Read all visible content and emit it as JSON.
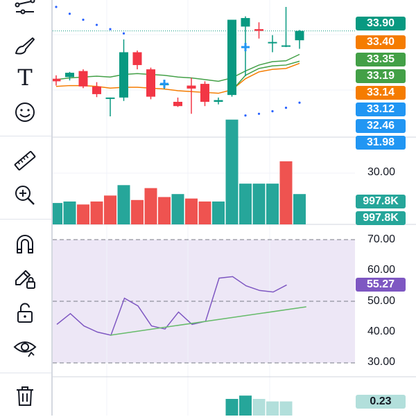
{
  "toolbar": {
    "tools": [
      {
        "name": "trend-line-tool",
        "icon": "trend-line-icon"
      },
      {
        "name": "brush-tool",
        "icon": "brush-icon"
      },
      {
        "name": "text-tool",
        "icon": "text-icon"
      },
      {
        "name": "emoji-tool",
        "icon": "emoji-icon"
      },
      {
        "name": "ruler-tool",
        "icon": "ruler-icon"
      },
      {
        "name": "zoom-in-tool",
        "icon": "zoom-in-icon"
      },
      {
        "name": "magnet-tool",
        "icon": "magnet-icon"
      },
      {
        "name": "lock-drawing-tool",
        "icon": "pencil-lock-icon"
      },
      {
        "name": "unlock-tool",
        "icon": "unlock-icon"
      },
      {
        "name": "visibility-tool",
        "icon": "eye-icon"
      },
      {
        "name": "delete-tool",
        "icon": "trash-icon"
      }
    ],
    "text_tool_glyph": "T"
  },
  "price_badges": [
    {
      "label": "33.90",
      "color": "#089981"
    },
    {
      "label": "33.40",
      "color": "#f57c00"
    },
    {
      "label": "33.35",
      "color": "#43a047"
    },
    {
      "label": "33.19",
      "color": "#43a047"
    },
    {
      "label": "33.14",
      "color": "#f57c00"
    },
    {
      "label": "33.12",
      "color": "#2196f3"
    },
    {
      "label": "32.46",
      "color": "#2196f3"
    },
    {
      "label": "31.98",
      "color": "#2196f3"
    }
  ],
  "volume_pane": {
    "axis_label": "30.00",
    "badges": [
      "997.8K",
      "997.8K"
    ]
  },
  "rsi_pane": {
    "axis_labels": [
      "70.00",
      "60.00",
      "50.00",
      "40.00",
      "30.00"
    ],
    "value_badge": "55.27",
    "value_color": "#7e57c2",
    "band_color": "#ede7f6"
  },
  "macd_pane": {
    "value_badge": "0.23",
    "badge_color": "#b2dfdb"
  },
  "colors": {
    "up": "#089981",
    "down": "#f23645",
    "vol_up": "#26a69a",
    "vol_down": "#ef5350",
    "psar": "#2962ff",
    "ma_green": "#43a047",
    "ma_orange": "#f57c00",
    "rsi_line": "#7e57c2",
    "trend_line": "#66bb6a"
  },
  "chart_data": [
    {
      "type": "candlestick",
      "candles": [
        {
          "o": 32.78,
          "h": 32.86,
          "l": 32.62,
          "c": 32.72
        },
        {
          "o": 32.82,
          "h": 32.94,
          "l": 32.74,
          "c": 32.92
        },
        {
          "o": 32.96,
          "h": 33.0,
          "l": 32.56,
          "c": 32.6
        },
        {
          "o": 32.6,
          "h": 32.7,
          "l": 32.35,
          "c": 32.42
        },
        {
          "o": 32.34,
          "h": 32.34,
          "l": 31.9,
          "c": 32.34
        },
        {
          "o": 32.34,
          "h": 33.7,
          "l": 32.26,
          "c": 33.4
        },
        {
          "o": 33.4,
          "h": 33.44,
          "l": 33.0,
          "c": 33.1
        },
        {
          "o": 33.0,
          "h": 33.04,
          "l": 32.3,
          "c": 32.36
        },
        {
          "o": 32.64,
          "h": 32.74,
          "l": 32.54,
          "c": 32.66
        },
        {
          "o": 32.24,
          "h": 32.34,
          "l": 32.12,
          "c": 32.14
        },
        {
          "o": 32.62,
          "h": 32.8,
          "l": 31.96,
          "c": 32.55
        },
        {
          "o": 32.66,
          "h": 32.72,
          "l": 32.14,
          "c": 32.24
        },
        {
          "o": 32.24,
          "h": 32.34,
          "l": 32.18,
          "c": 32.28
        },
        {
          "o": 32.4,
          "h": 34.16,
          "l": 32.36,
          "c": 34.16
        },
        {
          "o": 34.0,
          "h": 34.24,
          "l": 32.84,
          "c": 34.2
        },
        {
          "o": 33.94,
          "h": 34.1,
          "l": 33.72,
          "c": 33.9
        },
        {
          "o": 33.64,
          "h": 33.8,
          "l": 33.4,
          "c": 33.64
        },
        {
          "o": 33.56,
          "h": 34.46,
          "l": 33.52,
          "c": 33.56
        },
        {
          "o": 33.68,
          "h": 33.92,
          "l": 33.48,
          "c": 33.9
        }
      ],
      "psar": [
        34.46,
        34.3,
        34.16,
        34.04,
        33.94,
        33.84,
        null,
        null,
        null,
        null,
        null,
        null,
        null,
        null,
        31.92,
        31.96,
        32.02,
        32.1,
        32.22
      ],
      "ma_green": [
        32.76,
        32.8,
        32.82,
        32.84,
        32.82,
        32.88,
        32.9,
        32.88,
        32.86,
        32.82,
        32.8,
        32.76,
        32.72,
        32.8,
        32.96,
        33.1,
        33.18,
        33.2,
        33.35
      ],
      "ma_orange": [
        32.6,
        32.62,
        32.62,
        32.6,
        32.56,
        32.58,
        32.58,
        32.56,
        32.54,
        32.5,
        32.48,
        32.46,
        32.44,
        32.52,
        32.78,
        32.94,
        33.0,
        33.02,
        33.14
      ],
      "ma_green2": [
        null,
        null,
        null,
        null,
        null,
        null,
        null,
        null,
        null,
        null,
        null,
        null,
        null,
        32.5,
        32.86,
        33.02,
        33.08,
        33.1,
        33.19
      ],
      "last_price": 33.9
    },
    {
      "type": "bar",
      "name": "volume",
      "values": [
        280,
        285,
        275,
        285,
        305,
        340,
        290,
        330,
        300,
        310,
        295,
        285,
        285,
        560,
        345,
        345,
        345,
        420,
        310
      ],
      "directions": [
        "up",
        "up",
        "down",
        "down",
        "down",
        "up",
        "down",
        "down",
        "down",
        "up",
        "down",
        "down",
        "up",
        "up",
        "up",
        "up",
        "up",
        "down",
        "up"
      ]
    },
    {
      "type": "line",
      "name": "rsi",
      "values": [
        42.5,
        46.0,
        42.0,
        40.0,
        39.0,
        51.0,
        48.5,
        42.0,
        41.0,
        46.5,
        42.5,
        43.5,
        57.5,
        58.0,
        55.0,
        53.5,
        53.0,
        55.3
      ],
      "ylim": [
        30,
        70
      ],
      "levels": [
        70,
        50,
        30
      ],
      "trend_line": {
        "from": [
          4,
          39.0
        ],
        "to": [
          18.5,
          48.2
        ]
      }
    },
    {
      "type": "bar",
      "name": "macd-histogram",
      "values": [
        0.1,
        0.12,
        0.1,
        0.085,
        0.085
      ],
      "start_index": 13
    }
  ]
}
